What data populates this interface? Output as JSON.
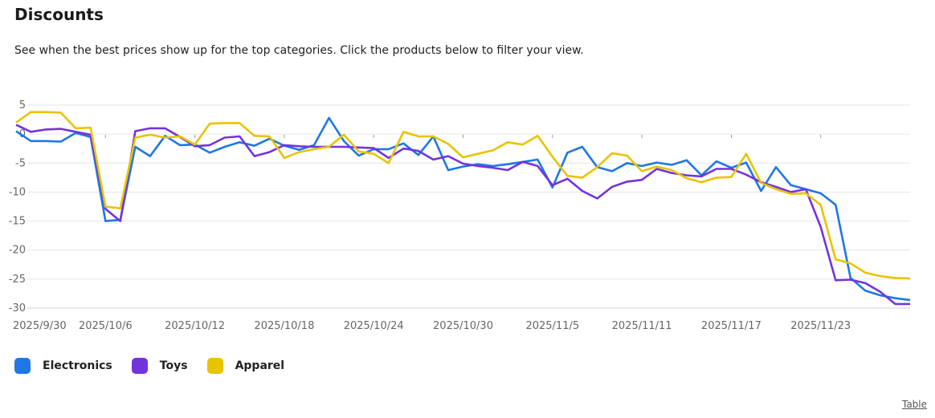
{
  "header": {
    "title": "Discounts",
    "subtitle": "See when the best prices show up for the top categories. Click the products below to filter your view."
  },
  "links": {
    "table": "Table"
  },
  "chart_data": {
    "type": "line",
    "title": "Discounts",
    "xlabel": "",
    "ylabel": "",
    "ylim": [
      -30,
      5
    ],
    "yticks": [
      5,
      0,
      -5,
      -10,
      -15,
      -20,
      -25,
      -30
    ],
    "xtick_labels": [
      "2025/9/30",
      "2025/10/6",
      "2025/10/12",
      "2025/10/18",
      "2025/10/24",
      "2025/10/30",
      "2025/11/5",
      "2025/11/11",
      "2025/11/17",
      "2025/11/23"
    ],
    "xtick_index": [
      0,
      6,
      12,
      18,
      24,
      30,
      36,
      42,
      48,
      54
    ],
    "grid": true,
    "legend_position": "bottom-left",
    "categories": [
      "2025/9/30",
      "2025/10/1",
      "2025/10/2",
      "2025/10/3",
      "2025/10/4",
      "2025/10/5",
      "2025/10/6",
      "2025/10/7",
      "2025/10/8",
      "2025/10/9",
      "2025/10/10",
      "2025/10/11",
      "2025/10/12",
      "2025/10/13",
      "2025/10/14",
      "2025/10/15",
      "2025/10/16",
      "2025/10/17",
      "2025/10/18",
      "2025/10/19",
      "2025/10/20",
      "2025/10/21",
      "2025/10/22",
      "2025/10/23",
      "2025/10/24",
      "2025/10/25",
      "2025/10/26",
      "2025/10/27",
      "2025/10/28",
      "2025/10/29",
      "2025/10/30",
      "2025/10/31",
      "2025/11/1",
      "2025/11/2",
      "2025/11/3",
      "2025/11/4",
      "2025/11/5",
      "2025/11/6",
      "2025/11/7",
      "2025/11/8",
      "2025/11/9",
      "2025/11/10",
      "2025/11/11",
      "2025/11/12",
      "2025/11/13",
      "2025/11/14",
      "2025/11/15",
      "2025/11/16",
      "2025/11/17",
      "2025/11/18",
      "2025/11/19",
      "2025/11/20",
      "2025/11/21",
      "2025/11/22",
      "2025/11/23",
      "2025/11/24",
      "2025/11/25",
      "2025/11/26",
      "2025/11/27",
      "2025/11/28",
      "2025/11/29"
    ],
    "series": [
      {
        "name": "Electronics",
        "color": "#1f77e6",
        "values": [
          0.5,
          -1.2,
          -1.2,
          -1.3,
          0.2,
          -0.5,
          -15,
          -14.8,
          -2.2,
          -3.8,
          -0.3,
          -1.9,
          -1.8,
          -3.2,
          -2.2,
          -1.4,
          -2,
          -0.8,
          -2,
          -2.7,
          -1.9,
          2.8,
          -1.2,
          -3.7,
          -2.6,
          -2.6,
          -1.6,
          -3.6,
          -0.4,
          -6.2,
          -5.6,
          -5.2,
          -5.5,
          -5.2,
          -4.8,
          -4.4,
          -9.2,
          -3.2,
          -2.2,
          -5.7,
          -6.4,
          -5,
          -5.5,
          -4.9,
          -5.3,
          -4.5,
          -7.1,
          -4.7,
          -5.8,
          -4.9,
          -9.8,
          -5.7,
          -8.8,
          -9.5,
          -10.2,
          -12.2,
          -24.8,
          -27,
          -27.8,
          -28.3,
          -28.6
        ]
      },
      {
        "name": "Toys",
        "color": "#7333dc",
        "values": [
          1.6,
          0.4,
          0.8,
          0.9,
          0.4,
          -0.1,
          -12.9,
          -15,
          0.5,
          1,
          1,
          -0.5,
          -2.1,
          -1.9,
          -0.6,
          -0.4,
          -3.8,
          -3.1,
          -1.9,
          -2.1,
          -2.2,
          -2.2,
          -2.2,
          -2.3,
          -2.4,
          -4.1,
          -2.5,
          -2.9,
          -4.4,
          -3.8,
          -5.1,
          -5.5,
          -5.8,
          -6.2,
          -4.8,
          -5.5,
          -8.8,
          -7.7,
          -9.8,
          -11.1,
          -9.1,
          -8.2,
          -7.9,
          -6,
          -6.7,
          -7.1,
          -7.3,
          -6,
          -6,
          -7,
          -8.3,
          -9.1,
          -10,
          -9.5,
          -16,
          -25.2,
          -25.1,
          -25.7,
          -27.2,
          -29.3,
          -29.3
        ]
      },
      {
        "name": "Apparel",
        "color": "#e8c400",
        "values": [
          2,
          3.8,
          3.8,
          3.7,
          1,
          1.1,
          -12.5,
          -12.8,
          -0.6,
          -0.1,
          -0.6,
          -0.4,
          -1.8,
          1.8,
          1.9,
          1.9,
          -0.3,
          -0.4,
          -4.1,
          -3.1,
          -2.6,
          -2.2,
          -0.1,
          -3,
          -3.4,
          -5,
          0.4,
          -0.4,
          -0.4,
          -1.7,
          -4,
          -3.4,
          -2.8,
          -1.4,
          -1.8,
          -0.3,
          -3.9,
          -7.2,
          -7.5,
          -5.7,
          -3.3,
          -3.7,
          -6.4,
          -5.6,
          -6.2,
          -7.6,
          -8.3,
          -7.5,
          -7.4,
          -3.4,
          -8.4,
          -9.5,
          -10.3,
          -10.2,
          -12.2,
          -21.6,
          -22.3,
          -23.9,
          -24.5,
          -24.8,
          -24.9
        ]
      }
    ]
  }
}
